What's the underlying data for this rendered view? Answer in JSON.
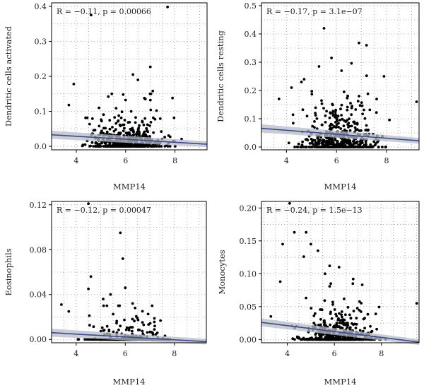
{
  "chart_data": [
    {
      "type": "scatter",
      "xlabel": "MMP14",
      "ylabel": "Dendritic cells activated",
      "annotation": "R = −0.11, p = 0.00066",
      "xlim": [
        3.0,
        9.3
      ],
      "ylim": [
        -0.01,
        0.41
      ],
      "xticks": [
        4,
        6,
        8
      ],
      "yticks": [
        0.0,
        0.1,
        0.2,
        0.3,
        0.4
      ],
      "ytick_labels": [
        "0.0",
        "0.1",
        "0.2",
        "0.3",
        "0.4"
      ],
      "grid": true,
      "regression": {
        "x0": 3.0,
        "y0": 0.033,
        "x1": 9.3,
        "y1": 0.006
      },
      "generated": {
        "zero_frac": 0.32,
        "scale": 0.03,
        "cap": 0.15
      },
      "highlight_points": [
        {
          "x": 7.7,
          "y": 0.398
        },
        {
          "x": 4.6,
          "y": 0.375
        },
        {
          "x": 7.0,
          "y": 0.227
        },
        {
          "x": 6.3,
          "y": 0.205
        },
        {
          "x": 6.5,
          "y": 0.19
        },
        {
          "x": 3.9,
          "y": 0.178
        },
        {
          "x": 7.1,
          "y": 0.158
        },
        {
          "x": 5.9,
          "y": 0.148
        },
        {
          "x": 5.3,
          "y": 0.142
        },
        {
          "x": 7.9,
          "y": 0.138
        },
        {
          "x": 6.8,
          "y": 0.135
        },
        {
          "x": 3.7,
          "y": 0.118
        }
      ]
    },
    {
      "type": "scatter",
      "xlabel": "MMP14",
      "ylabel": "Dendritic cells resting",
      "annotation": "R = −0.17, p = 3.1e−07",
      "xlim": [
        3.0,
        9.3
      ],
      "ylim": [
        -0.01,
        0.51
      ],
      "xticks": [
        4,
        6,
        8
      ],
      "yticks": [
        0.0,
        0.1,
        0.2,
        0.3,
        0.4,
        0.5
      ],
      "ytick_labels": [
        "0.0",
        "0.1",
        "0.2",
        "0.3",
        "0.4",
        "0.5"
      ],
      "grid": true,
      "regression": {
        "x0": 3.0,
        "y0": 0.066,
        "x1": 9.3,
        "y1": 0.022
      },
      "generated": {
        "zero_frac": 0.3,
        "scale": 0.05,
        "cap": 0.26
      },
      "highlight_points": [
        {
          "x": 5.5,
          "y": 0.42
        },
        {
          "x": 6.9,
          "y": 0.368
        },
        {
          "x": 7.2,
          "y": 0.36
        },
        {
          "x": 5.8,
          "y": 0.315
        },
        {
          "x": 6.6,
          "y": 0.296
        },
        {
          "x": 5.3,
          "y": 0.285
        },
        {
          "x": 6.2,
          "y": 0.27
        },
        {
          "x": 7.9,
          "y": 0.25
        },
        {
          "x": 4.6,
          "y": 0.23
        },
        {
          "x": 4.2,
          "y": 0.21
        },
        {
          "x": 3.7,
          "y": 0.17
        },
        {
          "x": 9.2,
          "y": 0.16
        }
      ]
    },
    {
      "type": "scatter",
      "xlabel": "MMP14",
      "ylabel": "Eosinophils",
      "annotation": "R = −0.12, p = 0.00047",
      "xlim": [
        3.0,
        9.3
      ],
      "ylim": [
        -0.003,
        0.123
      ],
      "xticks": [
        4,
        6,
        8
      ],
      "yticks": [
        0.0,
        0.04,
        0.08,
        0.12
      ],
      "ytick_labels": [
        "0.00",
        "0.04",
        "0.08",
        "0.12"
      ],
      "grid": true,
      "regression": {
        "x0": 3.0,
        "y0": 0.006,
        "x1": 9.3,
        "y1": -0.002
      },
      "generated": {
        "zero_frac": 0.82,
        "scale": 0.009,
        "cap": 0.03
      },
      "highlight_points": [
        {
          "x": 4.5,
          "y": 0.121
        },
        {
          "x": 5.8,
          "y": 0.095
        },
        {
          "x": 5.9,
          "y": 0.072
        },
        {
          "x": 4.6,
          "y": 0.056
        },
        {
          "x": 6.0,
          "y": 0.046
        },
        {
          "x": 4.5,
          "y": 0.045
        },
        {
          "x": 5.4,
          "y": 0.04
        },
        {
          "x": 3.4,
          "y": 0.031
        },
        {
          "x": 6.3,
          "y": 0.032
        },
        {
          "x": 5.1,
          "y": 0.036
        },
        {
          "x": 6.4,
          "y": 0.028
        },
        {
          "x": 3.7,
          "y": 0.025
        }
      ]
    },
    {
      "type": "scatter",
      "xlabel": "MMP14",
      "ylabel": "Monocytes",
      "annotation": "R = −0.24, p = 1.5e−13",
      "xlim": [
        2.9,
        9.6
      ],
      "ylim": [
        -0.005,
        0.21
      ],
      "xticks": [
        4,
        6,
        8
      ],
      "yticks": [
        0.0,
        0.05,
        0.1,
        0.15,
        0.2
      ],
      "ytick_labels": [
        "0.00",
        "0.05",
        "0.10",
        "0.15",
        "0.20"
      ],
      "grid": true,
      "regression": {
        "x0": 2.9,
        "y0": 0.026,
        "x1": 9.6,
        "y1": -0.004
      },
      "generated": {
        "zero_frac": 0.42,
        "scale": 0.018,
        "cap": 0.085
      },
      "highlight_points": [
        {
          "x": 4.1,
          "y": 0.207
        },
        {
          "x": 4.3,
          "y": 0.163
        },
        {
          "x": 4.8,
          "y": 0.163
        },
        {
          "x": 3.8,
          "y": 0.145
        },
        {
          "x": 5.0,
          "y": 0.145
        },
        {
          "x": 5.3,
          "y": 0.135
        },
        {
          "x": 4.7,
          "y": 0.126
        },
        {
          "x": 5.8,
          "y": 0.112
        },
        {
          "x": 6.2,
          "y": 0.11
        },
        {
          "x": 5.6,
          "y": 0.1
        },
        {
          "x": 3.7,
          "y": 0.088
        },
        {
          "x": 6.8,
          "y": 0.092
        },
        {
          "x": 9.5,
          "y": 0.055
        },
        {
          "x": 3.3,
          "y": 0.035
        }
      ]
    }
  ]
}
